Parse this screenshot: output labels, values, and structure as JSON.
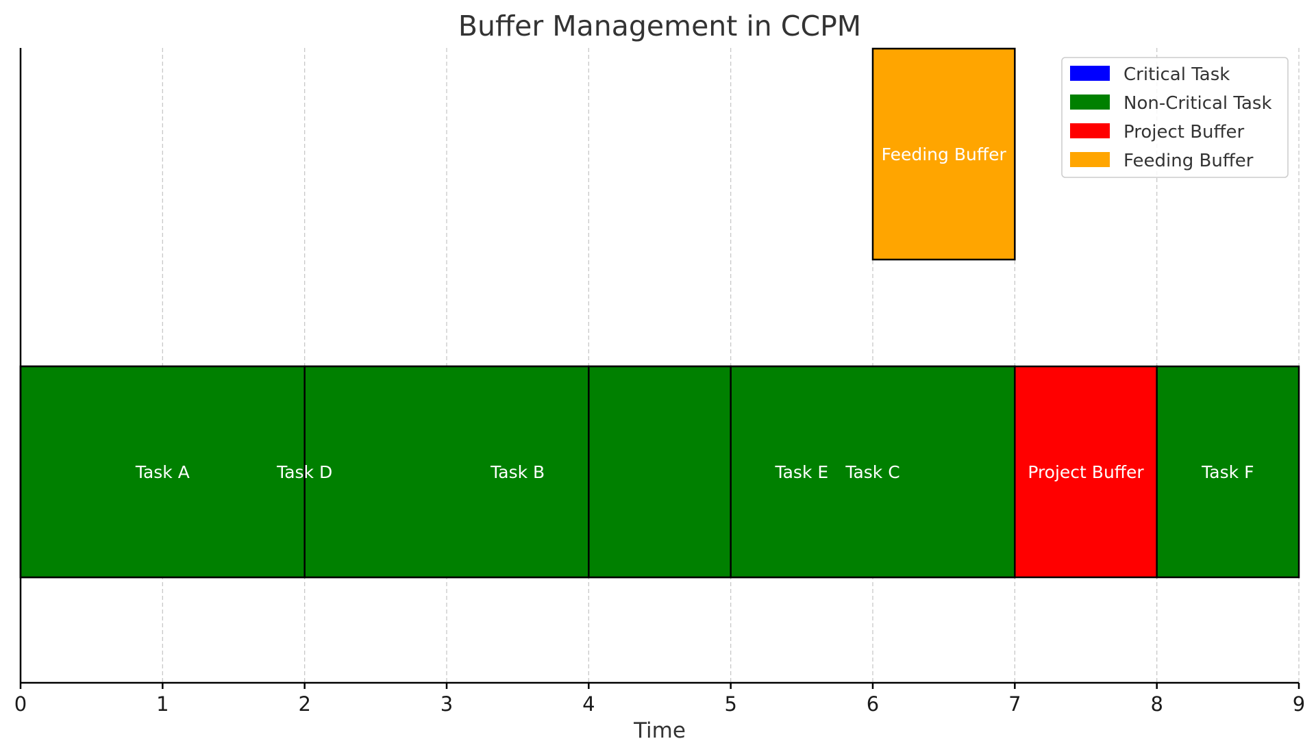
{
  "chart_data": {
    "type": "bar",
    "orientation": "horizontal",
    "title": "Buffer Management in CCPM",
    "xlabel": "Time",
    "ylabel": "",
    "xlim": [
      0,
      9
    ],
    "xticks": [
      "0",
      "1",
      "2",
      "3",
      "4",
      "5",
      "6",
      "7",
      "8",
      "9"
    ],
    "grid": "vertical",
    "legend_position": "top-right",
    "legend": [
      {
        "name": "Critical Task",
        "color": "#0000ff"
      },
      {
        "name": "Non-Critical Task",
        "color": "#008000"
      },
      {
        "name": "Project Buffer",
        "color": "#ff0000"
      },
      {
        "name": "Feeding Buffer",
        "color": "#ffa500"
      }
    ],
    "rows": 2,
    "bars": [
      {
        "label": "Task A",
        "start": 0,
        "duration": 2,
        "row": 0,
        "category": "Non-Critical Task"
      },
      {
        "label": "Task D",
        "start": 0,
        "duration": 4,
        "row": 0,
        "category": "Non-Critical Task"
      },
      {
        "label": "Task B",
        "start": 2,
        "duration": 3,
        "row": 0,
        "category": "Non-Critical Task"
      },
      {
        "label": "Task E",
        "start": 4,
        "duration": 3,
        "row": 0,
        "category": "Non-Critical Task"
      },
      {
        "label": "Task C",
        "start": 5,
        "duration": 2,
        "row": 0,
        "category": "Non-Critical Task"
      },
      {
        "label": "Project Buffer",
        "start": 7,
        "duration": 1,
        "row": 0,
        "category": "Project Buffer"
      },
      {
        "label": "Task F",
        "start": 8,
        "duration": 1,
        "row": 0,
        "category": "Non-Critical Task"
      },
      {
        "label": "Feeding Buffer",
        "start": 6,
        "duration": 1,
        "row": 1,
        "category": "Feeding Buffer"
      }
    ]
  }
}
